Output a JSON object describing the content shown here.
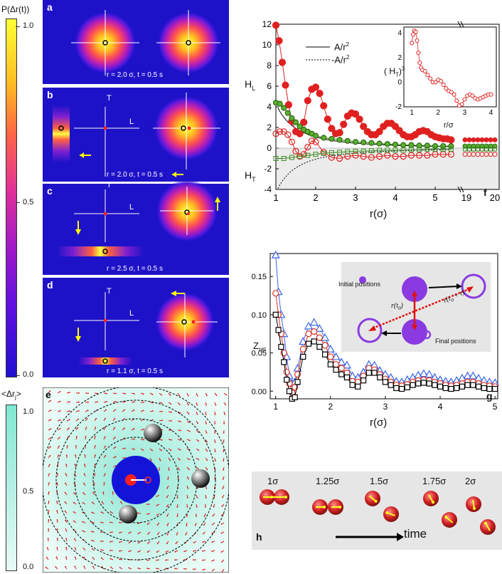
{
  "colorbar_top": {
    "title": "P(Δr(t))",
    "ticks": [
      "1.0",
      "0.5",
      "0.0"
    ]
  },
  "colorbar_bottom": {
    "title": "<Δr",
    "title_sub": "j",
    "title_end": ">",
    "ticks": [
      "1.0",
      "0.5",
      "0.0"
    ]
  },
  "panels": {
    "a": {
      "letter": "a",
      "caption": "r = 2.0 σ, t = 0.5 s"
    },
    "b": {
      "letter": "b",
      "caption": "r = 2.0 σ, t = 0.5 s",
      "axis_t": "T",
      "axis_l": "L"
    },
    "c": {
      "letter": "c",
      "caption": "r = 2.5 σ, t = 0.5 s",
      "axis_t": "T",
      "axis_l": "L"
    },
    "d": {
      "letter": "d",
      "caption": "r = 1.1 σ, t = 0.5 s",
      "axis_t": "T",
      "axis_l": "L"
    },
    "e": {
      "letter": "e"
    },
    "h": {
      "letter": "h",
      "labels": [
        "1σ",
        "1.25σ",
        "1.5σ",
        "1.75σ",
        "2σ"
      ],
      "time_label": "time"
    }
  },
  "chart_data": [
    {
      "panel": "f",
      "type": "scatter",
      "xlabel": "r(σ)",
      "ylabel_top": "H",
      "ylabel_top_sub": "L",
      "ylabel_bottom": "H",
      "ylabel_bottom_sub": "T",
      "xlim": [
        1,
        5.5
      ],
      "ylim": [
        -4,
        12
      ],
      "xticks": [
        1,
        2,
        3,
        4,
        5
      ],
      "xticks_break": [
        19,
        20
      ],
      "yticks": [
        -4,
        -2,
        0,
        2,
        4,
        6,
        8,
        10,
        12
      ],
      "legend": [
        {
          "name": "A/r",
          "sup": "2",
          "style": "solid"
        },
        {
          "name": "-A/r",
          "sup": "2",
          "style": "dotted"
        }
      ],
      "series": [
        {
          "name": "red filled",
          "x": [
            1.0,
            1.08,
            1.16,
            1.24,
            1.32,
            1.4,
            1.5,
            1.6,
            1.7,
            1.8,
            1.9,
            2.0,
            2.1,
            2.2,
            2.3,
            2.4,
            2.5,
            2.6,
            2.7,
            2.8,
            2.9,
            3.0,
            3.1,
            3.2,
            3.3,
            3.4,
            3.5,
            3.6,
            3.7,
            3.8,
            3.9,
            4.0,
            4.1,
            4.2,
            4.3,
            4.4,
            4.5,
            4.6,
            4.7,
            4.8,
            4.9,
            5.0,
            5.1,
            5.2,
            5.3,
            5.4
          ],
          "y": [
            11.9,
            10.4,
            8.3,
            6.1,
            4.2,
            2.6,
            1.6,
            1.4,
            2.5,
            4.6,
            5.7,
            5.9,
            5.3,
            4.1,
            2.8,
            1.9,
            1.4,
            1.5,
            2.3,
            3.1,
            3.4,
            3.3,
            2.8,
            2.1,
            1.6,
            1.3,
            1.3,
            1.6,
            2.1,
            2.4,
            2.4,
            2.1,
            1.7,
            1.3,
            1.1,
            1.1,
            1.3,
            1.6,
            1.7,
            1.6,
            1.3,
            1.1,
            1.0,
            0.9,
            0.9,
            0.8
          ]
        },
        {
          "name": "green filled",
          "x": [
            1.0,
            1.1,
            1.2,
            1.3,
            1.4,
            1.5,
            1.6,
            1.7,
            1.8,
            1.9,
            2.0,
            2.2,
            2.4,
            2.6,
            2.8,
            3.0,
            3.2,
            3.4,
            3.6,
            3.8,
            4.0,
            4.2,
            4.4,
            4.6,
            4.8,
            5.0,
            5.2,
            5.4
          ],
          "y": [
            4.4,
            4.3,
            3.9,
            3.4,
            2.9,
            2.5,
            2.1,
            1.8,
            1.6,
            1.4,
            1.2,
            1.0,
            0.9,
            0.8,
            0.7,
            0.6,
            0.55,
            0.5,
            0.45,
            0.4,
            0.35,
            0.3,
            0.3,
            0.25,
            0.25,
            0.2,
            0.2,
            0.2
          ]
        },
        {
          "name": "red open",
          "x": [
            1.0,
            1.1,
            1.2,
            1.3,
            1.4,
            1.5,
            1.6,
            1.7,
            1.8,
            1.9,
            2.0,
            2.2,
            2.4,
            2.6,
            2.8,
            3.0,
            3.2,
            3.4,
            3.6,
            3.8,
            4.0,
            4.2,
            4.4,
            4.6,
            4.8,
            5.0,
            5.2,
            5.4
          ],
          "y": [
            1.4,
            1.6,
            1.6,
            1.3,
            0.6,
            -0.3,
            -0.8,
            -0.6,
            0.1,
            0.7,
            0.6,
            -0.4,
            -0.9,
            -1.0,
            -0.8,
            -0.7,
            -0.8,
            -0.9,
            -0.8,
            -0.7,
            -0.8,
            -0.8,
            -0.7,
            -0.7,
            -0.7,
            -0.6,
            -0.6,
            -0.6
          ]
        },
        {
          "name": "green open",
          "x": [
            1.0,
            1.2,
            1.4,
            1.6,
            1.8,
            2.0,
            2.2,
            2.4,
            2.6,
            2.8,
            3.0,
            3.2,
            3.4,
            3.6,
            3.8,
            4.0,
            4.2,
            4.4,
            4.6,
            4.8,
            5.0,
            5.2,
            5.4
          ],
          "y": [
            -1.0,
            -1.0,
            -0.9,
            -0.8,
            -0.7,
            -0.6,
            -0.5,
            -0.45,
            -0.4,
            -0.35,
            -0.3,
            -0.3,
            -0.25,
            -0.2,
            -0.2,
            -0.2,
            -0.2,
            -0.15,
            -0.15,
            -0.1,
            -0.1,
            -0.1,
            -0.1
          ]
        }
      ],
      "inset": {
        "xlabel": "r/σ",
        "ylabel": "( H",
        "ylabel_sub": "T",
        "ylabel_end": ")",
        "ylabel_sup": "3",
        "xlim": [
          0.7,
          4.2
        ],
        "ylim": [
          -2,
          4.5
        ],
        "xticks": [
          1,
          2,
          3,
          4
        ],
        "yticks": [
          -2,
          0,
          2,
          4
        ],
        "x": [
          1.0,
          1.05,
          1.1,
          1.15,
          1.2,
          1.25,
          1.3,
          1.35,
          1.4,
          1.5,
          1.6,
          1.7,
          1.8,
          1.9,
          2.0,
          2.1,
          2.2,
          2.3,
          2.4,
          2.5,
          2.6,
          2.7,
          2.8,
          2.9,
          3.0,
          3.1,
          3.2,
          3.3,
          3.4,
          3.5,
          3.6,
          3.7,
          3.8,
          3.9,
          4.0
        ],
        "y": [
          3.2,
          3.9,
          4.2,
          4.1,
          3.4,
          2.4,
          1.6,
          1.2,
          1.0,
          0.9,
          0.6,
          0.3,
          0.0,
          0.0,
          0.2,
          0.1,
          -0.2,
          -0.5,
          -0.7,
          -0.8,
          -1.0,
          -1.5,
          -1.9,
          -1.8,
          -1.4,
          -1.1,
          -1.0,
          -1.1,
          -1.3,
          -1.4,
          -1.3,
          -1.2,
          -1.1,
          -1.0,
          -1.0
        ]
      }
    },
    {
      "panel": "g",
      "type": "line",
      "xlabel": "r(σ)",
      "ylabel": "Z",
      "ylabel_sub": "rel",
      "xlim": [
        0.9,
        5.05
      ],
      "ylim": [
        -0.01,
        0.18
      ],
      "xticks": [
        1,
        2,
        3,
        4,
        5
      ],
      "yticks": [
        0.0,
        0.05,
        0.1,
        0.15
      ],
      "inset_text": {
        "initial": "Initial positions",
        "final": "Final positions",
        "r_t0": "r(t",
        "r_t0_sub": "0",
        "r_t0_end": ")",
        "r_t0t": "r(t",
        "r_t0t_sub": "0",
        "r_t0t_end": " + t)"
      },
      "series": [
        {
          "name": "blue triangles",
          "x": [
            1.0,
            1.05,
            1.1,
            1.15,
            1.2,
            1.25,
            1.3,
            1.35,
            1.4,
            1.5,
            1.6,
            1.7,
            1.8,
            1.9,
            2.0,
            2.1,
            2.2,
            2.3,
            2.4,
            2.5,
            2.6,
            2.7,
            2.8,
            2.9,
            3.0,
            3.1,
            3.2,
            3.3,
            3.4,
            3.5,
            3.6,
            3.7,
            3.8,
            3.9,
            4.0,
            4.1,
            4.2,
            4.3,
            4.4,
            4.5,
            4.6,
            4.7,
            4.8,
            4.9,
            5.0
          ],
          "y": [
            0.178,
            0.13,
            0.1,
            0.075,
            0.045,
            0.02,
            0.01,
            0.012,
            0.03,
            0.065,
            0.085,
            0.09,
            0.082,
            0.07,
            0.055,
            0.045,
            0.038,
            0.034,
            0.02,
            0.018,
            0.025,
            0.035,
            0.034,
            0.027,
            0.022,
            0.018,
            0.013,
            0.012,
            0.015,
            0.018,
            0.021,
            0.023,
            0.022,
            0.018,
            0.015,
            0.013,
            0.012,
            0.014,
            0.017,
            0.02,
            0.02,
            0.017,
            0.014,
            0.012,
            0.011
          ]
        },
        {
          "name": "red circles",
          "x": [
            1.0,
            1.05,
            1.1,
            1.15,
            1.2,
            1.25,
            1.3,
            1.35,
            1.4,
            1.5,
            1.6,
            1.7,
            1.8,
            1.9,
            2.0,
            2.1,
            2.2,
            2.3,
            2.4,
            2.5,
            2.6,
            2.7,
            2.8,
            2.9,
            3.0,
            3.1,
            3.2,
            3.3,
            3.4,
            3.5,
            3.6,
            3.7,
            3.8,
            3.9,
            4.0,
            4.1,
            4.2,
            4.3,
            4.4,
            4.5,
            4.6,
            4.7,
            4.8,
            4.9,
            5.0
          ],
          "y": [
            0.128,
            0.1,
            0.075,
            0.05,
            0.025,
            0.01,
            -0.002,
            0.005,
            0.022,
            0.055,
            0.075,
            0.078,
            0.07,
            0.06,
            0.045,
            0.035,
            0.03,
            0.024,
            0.013,
            0.012,
            0.02,
            0.03,
            0.028,
            0.022,
            0.016,
            0.012,
            0.008,
            0.007,
            0.009,
            0.012,
            0.014,
            0.015,
            0.014,
            0.012,
            0.01,
            0.008,
            0.007,
            0.008,
            0.01,
            0.012,
            0.012,
            0.01,
            0.008,
            0.007,
            0.006
          ]
        },
        {
          "name": "black squares",
          "x": [
            1.0,
            1.05,
            1.1,
            1.15,
            1.2,
            1.25,
            1.3,
            1.35,
            1.4,
            1.5,
            1.6,
            1.7,
            1.8,
            1.9,
            2.0,
            2.1,
            2.2,
            2.3,
            2.4,
            2.5,
            2.6,
            2.7,
            2.8,
            2.9,
            3.0,
            3.1,
            3.2,
            3.3,
            3.4,
            3.5,
            3.6,
            3.7,
            3.8,
            3.9,
            4.0,
            4.1,
            4.2,
            4.3,
            4.4,
            4.5,
            4.6,
            4.7,
            4.8,
            4.9,
            5.0
          ],
          "y": [
            0.1,
            0.08,
            0.058,
            0.038,
            0.015,
            0.0,
            -0.01,
            -0.008,
            0.012,
            0.045,
            0.062,
            0.065,
            0.058,
            0.048,
            0.035,
            0.028,
            0.022,
            0.018,
            0.008,
            0.006,
            0.014,
            0.024,
            0.024,
            0.018,
            0.012,
            0.008,
            0.004,
            0.003,
            0.005,
            0.008,
            0.01,
            0.011,
            0.01,
            0.008,
            0.006,
            0.004,
            0.003,
            0.004,
            0.006,
            0.008,
            0.008,
            0.006,
            0.004,
            0.003,
            0.003
          ]
        }
      ]
    }
  ]
}
